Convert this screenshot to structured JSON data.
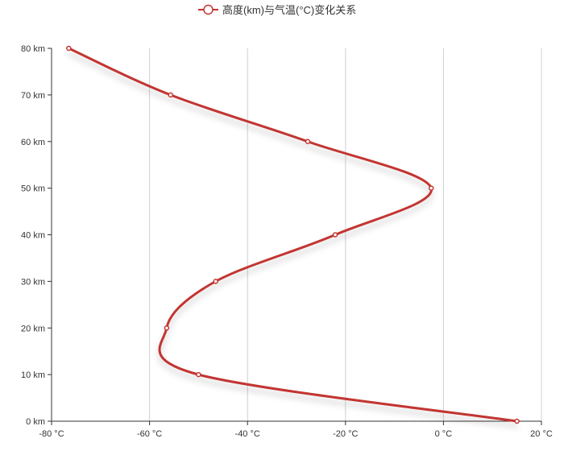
{
  "chart_data": {
    "type": "line",
    "series": [
      {
        "name": "高度(km)与气温(°C)变化关系",
        "color": "#c23531",
        "points": [
          {
            "x": 15,
            "y": 0
          },
          {
            "x": -50,
            "y": 10
          },
          {
            "x": -56.5,
            "y": 20
          },
          {
            "x": -46.5,
            "y": 30
          },
          {
            "x": -22.1,
            "y": 40
          },
          {
            "x": -2.5,
            "y": 50
          },
          {
            "x": -27.7,
            "y": 60
          },
          {
            "x": -55.7,
            "y": 70
          },
          {
            "x": -76.5,
            "y": 80
          }
        ]
      }
    ],
    "x_ticks": [
      "-80 °C",
      "-60 °C",
      "-40 °C",
      "-20 °C",
      "0 °C",
      "20 °C"
    ],
    "y_ticks": [
      "0 km",
      "10 km",
      "20 km",
      "30 km",
      "40 km",
      "50 km",
      "60 km",
      "70 km",
      "80 km"
    ],
    "xlim": [
      -80,
      20
    ],
    "ylim": [
      0,
      80
    ],
    "legend_position": "top-center",
    "grid": {
      "x": true,
      "y": false
    }
  }
}
